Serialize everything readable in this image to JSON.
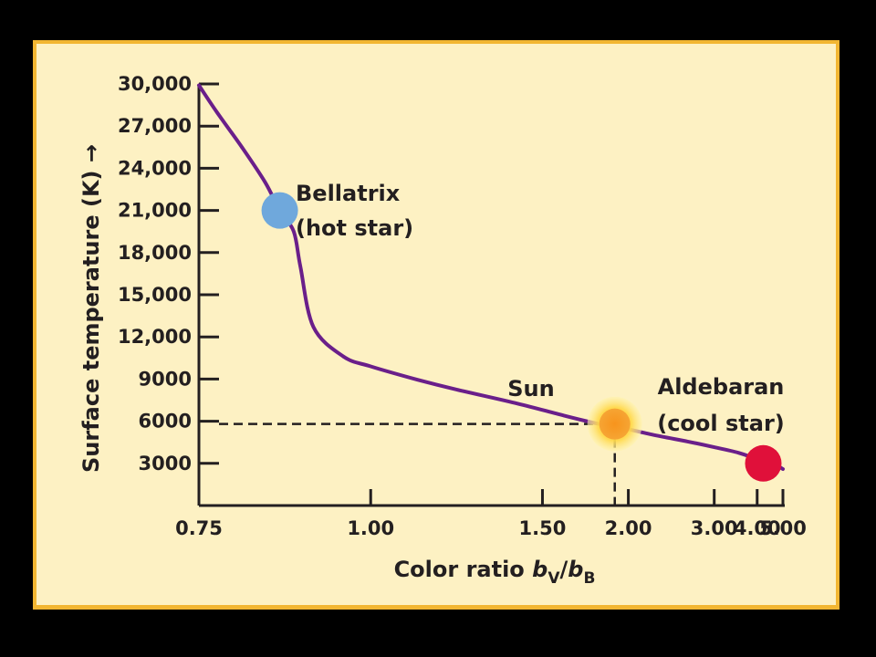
{
  "colors": {
    "background": "#000000",
    "panel": "#fdf1c3",
    "panel_border": "#f2b632",
    "axis": "#231f20",
    "curve": "#6a1f8a",
    "bellatrix": "#6fa8dc",
    "sun": "#f7941d",
    "sun_glow": "#ffd84a",
    "aldebaran": "#e0103a"
  },
  "chart_data": {
    "type": "line",
    "ylabel": "Surface temperature (K) →",
    "xlabel": {
      "prefix": "Color ratio ",
      "b1": "b",
      "s1": "V",
      "slash": "/",
      "b2": "b",
      "s2": "B"
    },
    "x_scale": "reciprocal",
    "xlim": [
      0.75,
      5.0
    ],
    "ylim": [
      0,
      30000
    ],
    "x_ticks": [
      {
        "value": 0.75,
        "label": "0.75"
      },
      {
        "value": 1.0,
        "label": "1.00"
      },
      {
        "value": 1.5,
        "label": "1.50"
      },
      {
        "value": 2.0,
        "label": "2.00"
      },
      {
        "value": 3.0,
        "label": "3.00"
      },
      {
        "value": 4.0,
        "label": "4.00"
      },
      {
        "value": 5.0,
        "label": "5.00"
      }
    ],
    "y_ticks": [
      {
        "value": 3000,
        "label": "3000"
      },
      {
        "value": 6000,
        "label": "6000"
      },
      {
        "value": 9000,
        "label": "9000"
      },
      {
        "value": 12000,
        "label": "12,000"
      },
      {
        "value": 15000,
        "label": "15,000"
      },
      {
        "value": 18000,
        "label": "18,000"
      },
      {
        "value": 21000,
        "label": "21,000"
      },
      {
        "value": 24000,
        "label": "24,000"
      },
      {
        "value": 27000,
        "label": "27,000"
      },
      {
        "value": 30000,
        "label": "30,000"
      }
    ],
    "curve": {
      "x": [
        0.75,
        0.77,
        0.8,
        0.83,
        0.85,
        0.87,
        0.88,
        0.9,
        0.95,
        1.0,
        1.1,
        1.2,
        1.4,
        1.6,
        1.8,
        1.9,
        2.2,
        2.6,
        3.0,
        3.5,
        4.0,
        4.5,
        5.0
      ],
      "y": [
        29900,
        28000,
        25500,
        23000,
        21000,
        19500,
        17000,
        12700,
        10600,
        9900,
        8950,
        8250,
        7250,
        6400,
        5800,
        5650,
        5050,
        4550,
        4150,
        3750,
        3300,
        3050,
        2600
      ]
    },
    "points": [
      {
        "name": "Bellatrix",
        "note": "(hot star)",
        "x": 0.85,
        "y": 21000
      },
      {
        "name": "Sun",
        "x": 1.9,
        "y": 5800
      },
      {
        "name": "Aldebaran",
        "note": "(cool star)",
        "x": 4.2,
        "y": 3000
      }
    ],
    "reference_lines": {
      "x": 1.9,
      "y": 5800,
      "style": "dashed"
    }
  }
}
